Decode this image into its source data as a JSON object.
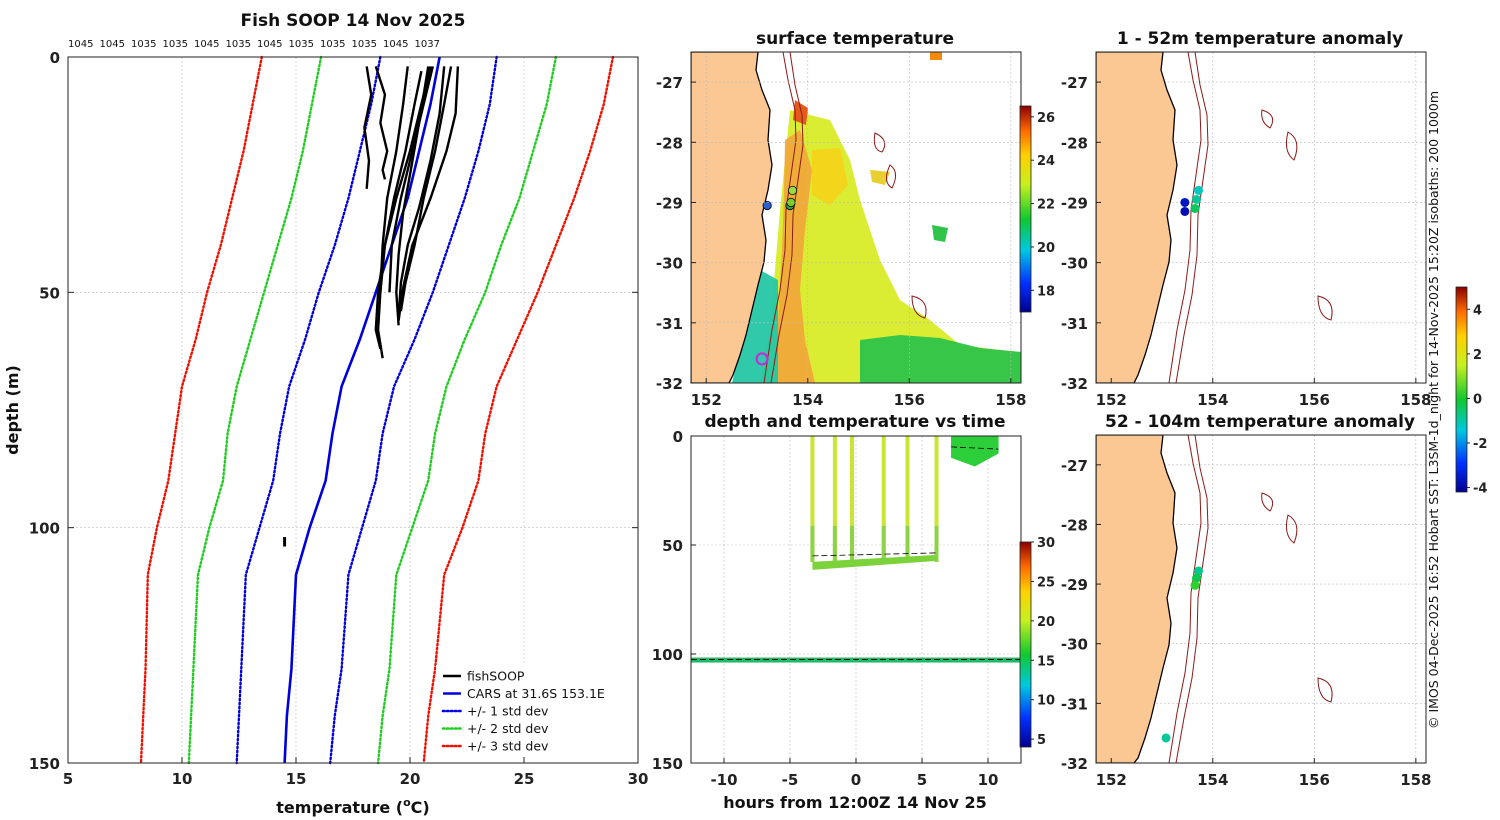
{
  "chart_data": [
    {
      "id": "profile",
      "type": "line",
      "title": "Fish SOOP 14 Nov 2025",
      "top_labels": [
        "1045",
        "1045",
        "1035",
        "1035",
        "1045",
        "1035",
        "1045",
        "1035",
        "1035",
        "1035",
        "1045",
        "1037"
      ],
      "xlabel": "temperature (°C)",
      "xlabel_main": "temperature (",
      "xlabel_sup": "o",
      "xlabel_end": "C)",
      "ylabel": "depth (m)",
      "xlim": [
        5,
        30
      ],
      "ylim": [
        150,
        0
      ],
      "xticks": [
        "5",
        "10",
        "15",
        "20",
        "25",
        "30"
      ],
      "yticks": [
        "0",
        "50",
        "100",
        "150"
      ],
      "grid": true,
      "legend_position": "bottom-right",
      "legend": [
        {
          "label": "fishSOOP",
          "color": "#000000",
          "style": "solid"
        },
        {
          "label": "CARS at 31.6S 153.1E",
          "color": "#0000dd",
          "style": "solid"
        },
        {
          "label": "+/- 1 std dev",
          "color": "#0000dd",
          "style": "dotted"
        },
        {
          "label": "+/- 2 std dev",
          "color": "#22cc22",
          "style": "dotted"
        },
        {
          "label": "+/- 3 std dev",
          "color": "#ee1100",
          "style": "dotted"
        }
      ],
      "series": [
        {
          "name": "CARS at 31.6S 153.1E",
          "color": "#0000dd",
          "style": "solid",
          "x": [
            21.3,
            20.9,
            20.4,
            19.9,
            19.2,
            18.5,
            17.8,
            17.0,
            16.6,
            16.3,
            15.6,
            15.0,
            14.8,
            14.6,
            14.5
          ],
          "y": [
            0,
            10,
            20,
            30,
            40,
            50,
            60,
            70,
            80,
            90,
            100,
            110,
            130,
            140,
            150
          ]
        },
        {
          "name": "+1 std",
          "color": "#0000dd",
          "style": "dotted",
          "x": [
            23.8,
            23.5,
            23.0,
            22.4,
            21.7,
            21.0,
            20.2,
            19.3,
            18.8,
            18.5,
            17.9,
            17.3,
            17.0,
            16.7,
            16.5
          ],
          "y": [
            0,
            10,
            20,
            30,
            40,
            50,
            60,
            70,
            80,
            90,
            100,
            110,
            130,
            140,
            150
          ]
        },
        {
          "name": "-1 std",
          "color": "#0000dd",
          "style": "dotted",
          "x": [
            18.7,
            18.3,
            17.8,
            17.3,
            16.7,
            16.0,
            15.4,
            14.7,
            14.3,
            14.0,
            13.4,
            12.8,
            12.6,
            12.5,
            12.4
          ],
          "y": [
            0,
            10,
            20,
            30,
            40,
            50,
            60,
            70,
            80,
            90,
            100,
            110,
            130,
            140,
            150
          ]
        },
        {
          "name": "+2 std",
          "color": "#22cc22",
          "style": "dotted",
          "x": [
            26.4,
            26.0,
            25.4,
            24.8,
            24.0,
            23.3,
            22.4,
            21.6,
            21.1,
            20.8,
            20.1,
            19.4,
            19.1,
            18.8,
            18.6
          ],
          "y": [
            0,
            10,
            20,
            30,
            40,
            50,
            60,
            70,
            80,
            90,
            100,
            110,
            130,
            140,
            150
          ]
        },
        {
          "name": "-2 std",
          "color": "#22cc22",
          "style": "dotted",
          "x": [
            16.1,
            15.7,
            15.3,
            14.8,
            14.2,
            13.6,
            13.0,
            12.4,
            12.0,
            11.8,
            11.2,
            10.7,
            10.5,
            10.4,
            10.3
          ],
          "y": [
            0,
            10,
            20,
            30,
            40,
            50,
            60,
            70,
            80,
            90,
            100,
            110,
            130,
            140,
            150
          ]
        },
        {
          "name": "+3 std",
          "color": "#ee1100",
          "style": "dotted",
          "x": [
            28.9,
            28.5,
            27.9,
            27.2,
            26.4,
            25.6,
            24.7,
            23.8,
            23.3,
            23.0,
            22.3,
            21.5,
            21.1,
            20.8,
            20.6
          ],
          "y": [
            0,
            10,
            20,
            30,
            40,
            50,
            60,
            70,
            80,
            90,
            100,
            110,
            130,
            140,
            150
          ]
        },
        {
          "name": "-3 std",
          "color": "#ee1100",
          "style": "dotted",
          "x": [
            13.5,
            13.1,
            12.7,
            12.2,
            11.7,
            11.1,
            10.6,
            10.0,
            9.7,
            9.4,
            8.9,
            8.5,
            8.4,
            8.3,
            8.2
          ],
          "y": [
            0,
            10,
            20,
            30,
            40,
            50,
            60,
            70,
            80,
            90,
            100,
            110,
            130,
            140,
            150
          ]
        }
      ],
      "fish_profiles": [
        {
          "x": [
            18.1,
            18.3,
            18.0,
            18.2,
            18.1
          ],
          "y": [
            2,
            8,
            15,
            22,
            28
          ]
        },
        {
          "x": [
            18.5,
            18.9,
            18.7,
            19.0,
            18.8,
            18.9
          ],
          "y": [
            2,
            8,
            14,
            20,
            24,
            26
          ]
        },
        {
          "x": [
            20.8,
            20.4,
            20.0,
            19.7,
            19.5,
            19.4,
            19.5
          ],
          "y": [
            2,
            14,
            25,
            33,
            42,
            50,
            57
          ]
        },
        {
          "x": [
            21.5,
            21.3,
            20.9,
            20.4,
            19.9,
            19.6,
            19.5
          ],
          "y": [
            2,
            12,
            22,
            32,
            40,
            48,
            55
          ]
        },
        {
          "x": [
            22.1,
            22.0,
            21.6,
            20.9,
            20.1,
            19.7,
            19.5
          ],
          "y": [
            2,
            12,
            20,
            30,
            40,
            49,
            56
          ]
        },
        {
          "x": [
            21.0,
            20.6,
            20.1,
            19.6,
            19.2,
            19.1
          ],
          "y": [
            2,
            10,
            20,
            30,
            40,
            50
          ]
        },
        {
          "x": [
            21.8,
            21.5,
            21.1,
            20.6,
            20.2,
            19.8,
            19.6
          ],
          "y": [
            2,
            10,
            20,
            30,
            40,
            48,
            54
          ]
        },
        {
          "x": [
            20.9,
            20.5,
            20.0,
            19.4,
            18.9,
            18.7,
            18.6,
            18.8
          ],
          "y": [
            2,
            10,
            20,
            30,
            40,
            50,
            58,
            64
          ]
        },
        {
          "x": [
            20.5,
            20.2,
            19.8,
            19.3,
            18.9,
            18.6,
            18.5,
            18.7
          ],
          "y": [
            3,
            10,
            20,
            30,
            40,
            50,
            58,
            62
          ]
        },
        {
          "x": [
            19.9,
            19.7,
            19.4,
            19.0,
            18.8,
            18.7
          ],
          "y": [
            2,
            10,
            20,
            30,
            40,
            50
          ]
        }
      ],
      "deep_marks": [
        {
          "x": 14.5,
          "y0": 102,
          "y1": 104
        }
      ]
    },
    {
      "id": "sst",
      "type": "heatmap",
      "title": "surface temperature",
      "xlim": [
        151.7,
        158.2
      ],
      "ylim": [
        -32,
        -26.5
      ],
      "xticks": [
        152,
        154,
        156,
        158
      ],
      "yticks": [
        -27,
        -28,
        -29,
        -30,
        -31,
        -32
      ],
      "colorbar": {
        "min": 17,
        "max": 26.5,
        "ticks": [
          "18",
          "20",
          "22",
          "24",
          "26"
        ]
      },
      "stations": [
        {
          "lon": 153.2,
          "lat": -29.05,
          "color": "#2a5fd0"
        },
        {
          "lon": 153.65,
          "lat": -29.05,
          "color": "#22aa33"
        },
        {
          "lon": 153.7,
          "lat": -28.8,
          "color": "#99dd44"
        },
        {
          "lon": 153.67,
          "lat": -29.0,
          "color": "#77cc22"
        }
      ],
      "cars_marker": {
        "lon": 153.1,
        "lat": -31.6
      }
    },
    {
      "id": "time",
      "type": "scatter",
      "title": "depth and temperature vs time",
      "xlabel": "hours from 12:00Z 14 Nov 25",
      "xlim": [
        -12.5,
        12.5
      ],
      "ylim": [
        150,
        0
      ],
      "xticks": [
        "-10",
        "-5",
        "0",
        "5",
        "10"
      ],
      "yticks": [
        "0",
        "50",
        "100",
        "150"
      ],
      "colorbar": {
        "min": 4,
        "max": 30,
        "ticks": [
          "5",
          "10",
          "15",
          "20",
          "25",
          "30"
        ]
      },
      "profile_hours": [
        -3.3,
        -1.6,
        -0.3,
        2.1,
        3.9,
        6.1
      ],
      "deep_series_depth": 103,
      "mid_depth": 55,
      "late_window": [
        7.2,
        10.8
      ]
    },
    {
      "id": "anom1",
      "type": "scatter",
      "title": "1 - 52m temperature anomaly",
      "xlim": [
        151.7,
        158.2
      ],
      "ylim": [
        -32,
        -26.5
      ],
      "xticks": [
        152,
        154,
        156,
        158
      ],
      "yticks": [
        -27,
        -28,
        -29,
        -30,
        -31,
        -32
      ],
      "points": [
        {
          "lon": 153.45,
          "lat": -29.0,
          "value": -3.6
        },
        {
          "lon": 153.45,
          "lat": -29.15,
          "value": -3.8
        },
        {
          "lon": 153.72,
          "lat": -28.8,
          "value": -1.2
        },
        {
          "lon": 153.68,
          "lat": -28.95,
          "value": -0.9
        },
        {
          "lon": 153.65,
          "lat": -29.1,
          "value": -0.4
        }
      ]
    },
    {
      "id": "anom2",
      "type": "scatter",
      "title": "52 - 104m temperature anomaly",
      "xlim": [
        151.7,
        158.2
      ],
      "ylim": [
        -32,
        -26.5
      ],
      "xticks": [
        152,
        154,
        156,
        158
      ],
      "yticks": [
        -27,
        -28,
        -29,
        -30,
        -31,
        -32
      ],
      "colorbar": {
        "min": -4.2,
        "max": 5,
        "ticks": [
          "4",
          "2",
          "0",
          "-2",
          "-4"
        ]
      },
      "points": [
        {
          "lon": 153.72,
          "lat": -28.78,
          "value": -0.8
        },
        {
          "lon": 153.68,
          "lat": -28.9,
          "value": -0.3
        },
        {
          "lon": 153.65,
          "lat": -29.02,
          "value": 0.2
        },
        {
          "lon": 153.08,
          "lat": -31.58,
          "value": -0.9
        }
      ]
    }
  ],
  "side_caption": "© IMOS 04-Dec-2025 16:52 Hobart SST: L3SM-1d_night for 14-Nov-2025 15:20Z isobaths: 200  1000m"
}
